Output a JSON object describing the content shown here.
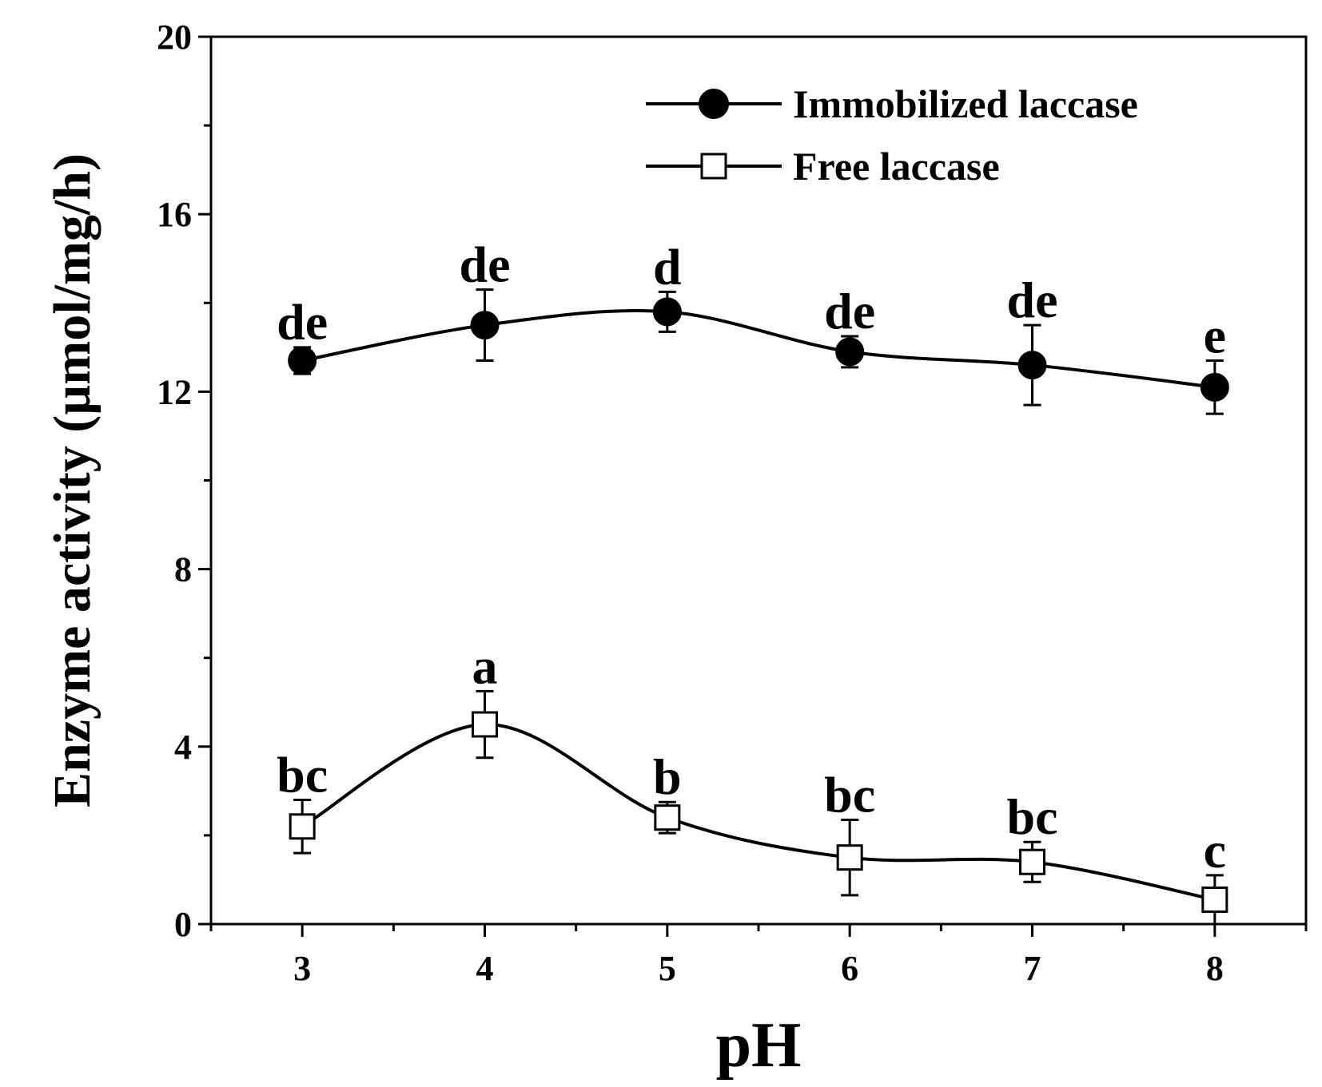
{
  "chart_data": {
    "type": "line",
    "xlabel": "pH",
    "ylabel": "Enzyme activity (µmol/mg/h)",
    "xlim": [
      2.5,
      8.5
    ],
    "ylim": [
      0,
      20
    ],
    "xticks": [
      3,
      4,
      5,
      6,
      7,
      8
    ],
    "xtick_labels": [
      "3",
      "4",
      "5",
      "6",
      "7",
      "8"
    ],
    "yticks": [
      0,
      4,
      8,
      12,
      16,
      20
    ],
    "ytick_labels": [
      "0",
      "4",
      "8",
      "12",
      "16",
      "20"
    ],
    "grid": false,
    "legend_position": "top-right",
    "x": [
      3,
      4,
      5,
      6,
      7,
      8
    ],
    "series": [
      {
        "name": "Immobilized laccase",
        "marker": "filled-circle",
        "values": [
          12.7,
          13.5,
          13.8,
          12.9,
          12.6,
          12.1
        ],
        "errors": [
          0.3,
          0.8,
          0.45,
          0.35,
          0.9,
          0.6
        ],
        "labels": [
          "de",
          "de",
          "d",
          "de",
          "de",
          "e"
        ]
      },
      {
        "name": "Free laccase",
        "marker": "open-square",
        "values": [
          2.2,
          4.5,
          2.4,
          1.5,
          1.4,
          0.55
        ],
        "errors": [
          0.6,
          0.75,
          0.35,
          0.85,
          0.45,
          0.55
        ],
        "labels": [
          "bc",
          "a",
          "b",
          "bc",
          "bc",
          "c"
        ]
      }
    ],
    "colors": {
      "line": "#000000",
      "marker_fill": "#000000",
      "open_marker_fill": "#ffffff"
    }
  }
}
